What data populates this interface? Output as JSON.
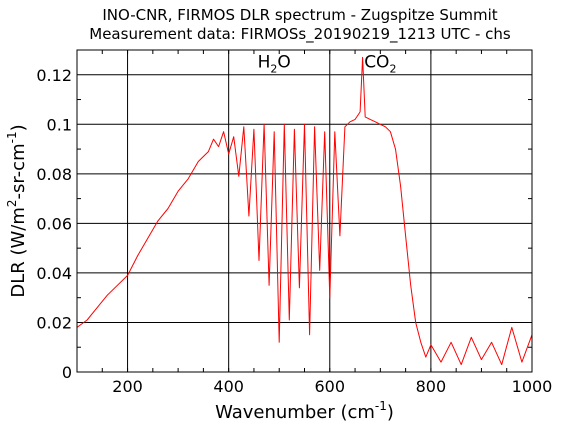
{
  "chart_data": {
    "type": "line",
    "title": "INO-CNR, FIRMOS DLR spectrum - Zugspitze Summit",
    "subtitle": "Measurement data: FIRMOSs_20190219_1213 UTC - chs",
    "xlabel": {
      "main": "Wavenumber (cm",
      "sup": "-1",
      "tail": ")"
    },
    "ylabel": {
      "p1": "DLR (W/m",
      "sup1": "2",
      "p2": "-sr-cm",
      "sup2": "-1",
      "p3": ")"
    },
    "xlim": [
      100,
      1000
    ],
    "ylim": [
      0,
      0.13
    ],
    "xticks": [
      200,
      400,
      600,
      800,
      1000
    ],
    "xtick_labels": [
      "200",
      "400",
      "600",
      "800",
      "1000"
    ],
    "yticks": [
      0,
      0.02,
      0.04,
      0.06,
      0.08,
      0.1,
      0.12
    ],
    "ytick_labels": [
      "0",
      "0.02",
      "0.04",
      "0.06",
      "0.08",
      "0.1",
      "0.12"
    ],
    "grid": true,
    "line_color": "#ff0000",
    "annotations": [
      {
        "base": "H",
        "sub": "2",
        "tail": "O",
        "x": 490,
        "y": 0.123
      },
      {
        "base": "CO",
        "sub": "2",
        "tail": "",
        "x": 700,
        "y": 0.123
      }
    ],
    "series": [
      {
        "x": [
          100,
          120,
          140,
          160,
          180,
          200,
          220,
          240,
          260,
          280,
          300,
          320,
          340,
          360,
          370,
          380,
          390,
          400,
          410,
          420,
          430,
          440,
          450,
          460,
          470,
          480,
          490,
          500,
          510,
          520,
          530,
          540,
          550,
          560,
          570,
          580,
          590,
          600,
          610,
          620,
          630,
          640,
          650,
          660,
          665,
          670,
          680,
          690,
          700,
          710,
          720,
          730,
          740,
          750,
          760,
          770,
          780,
          790,
          800,
          820,
          840,
          860,
          880,
          900,
          920,
          940,
          960,
          980,
          1000
        ],
        "y": [
          0.018,
          0.021,
          0.026,
          0.031,
          0.035,
          0.039,
          0.047,
          0.054,
          0.061,
          0.066,
          0.073,
          0.078,
          0.085,
          0.089,
          0.094,
          0.091,
          0.097,
          0.088,
          0.095,
          0.079,
          0.099,
          0.063,
          0.098,
          0.045,
          0.1,
          0.035,
          0.097,
          0.012,
          0.1,
          0.021,
          0.098,
          0.034,
          0.1,
          0.015,
          0.099,
          0.041,
          0.097,
          0.03,
          0.097,
          0.055,
          0.099,
          0.101,
          0.102,
          0.105,
          0.127,
          0.103,
          0.102,
          0.101,
          0.1,
          0.099,
          0.097,
          0.09,
          0.075,
          0.055,
          0.035,
          0.02,
          0.012,
          0.006,
          0.011,
          0.004,
          0.012,
          0.003,
          0.014,
          0.005,
          0.012,
          0.003,
          0.018,
          0.004,
          0.015
        ]
      }
    ]
  }
}
